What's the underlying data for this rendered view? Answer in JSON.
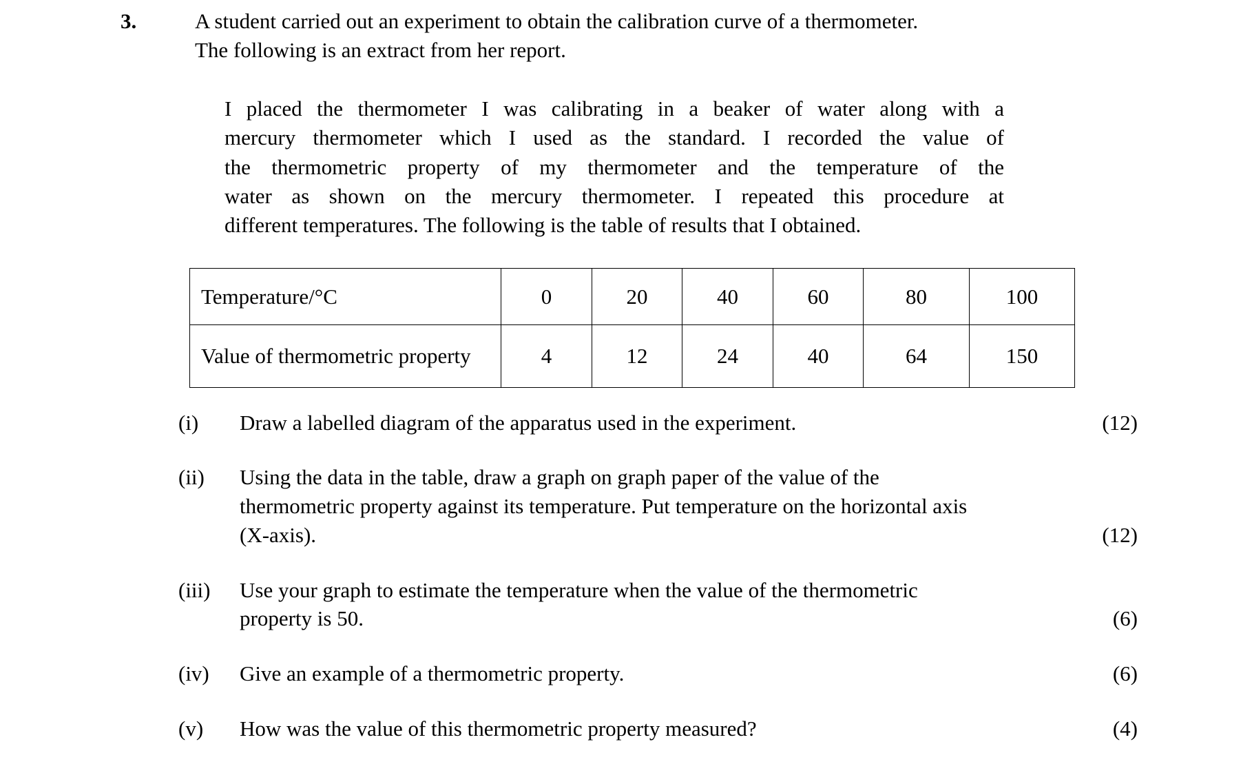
{
  "question": {
    "number": "3.",
    "intro": [
      "A student carried out an experiment to obtain the calibration curve of a thermometer.",
      "The following is an extract from her report."
    ],
    "report": [
      "I placed the thermometer I was calibrating in a beaker of water along with a",
      "mercury thermometer which I used as the standard. I recorded the value of",
      "the thermometric property of my thermometer and the temperature of the",
      "water as shown on the mercury thermometer. I repeated this procedure at",
      "different temperatures. The following is the table of results that I obtained."
    ],
    "table": {
      "rows": [
        {
          "header": "Temperature/°C",
          "values": [
            "0",
            "20",
            "40",
            "60",
            "80",
            "100"
          ]
        },
        {
          "header": "Value of thermometric property",
          "values": [
            "4",
            "12",
            "24",
            "40",
            "64",
            "150"
          ]
        }
      ]
    },
    "parts": [
      {
        "label": "(i)",
        "lines": [
          "Draw a labelled diagram of the apparatus used in the experiment."
        ],
        "marks": "(12)"
      },
      {
        "label": "(ii)",
        "lines": [
          "Using the data in the table, draw a graph on graph paper of the value of the",
          "thermometric property against its temperature. Put temperature on the horizontal axis",
          "(X-axis)."
        ],
        "marks": "(12)"
      },
      {
        "label": "(iii)",
        "lines": [
          "Use your graph to estimate the temperature when the value of the thermometric",
          "property is 50."
        ],
        "marks": "(6)"
      },
      {
        "label": "(iv)",
        "lines": [
          "Give an example of a thermometric property."
        ],
        "marks": "(6)"
      },
      {
        "label": "(v)",
        "lines": [
          "How was the value of this thermometric property measured?"
        ],
        "marks": "(4)"
      }
    ]
  }
}
